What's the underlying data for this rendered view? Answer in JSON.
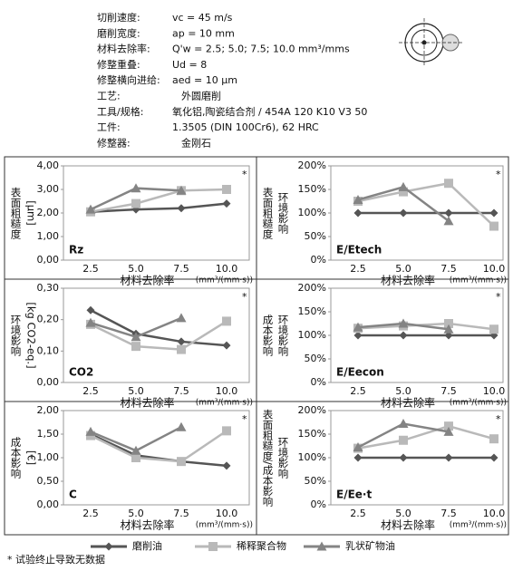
{
  "header": {
    "rows": [
      {
        "label": "切削速度:",
        "value": "vc = 45 m/s"
      },
      {
        "label": "磨削宽度:",
        "value": "ap = 10 mm"
      },
      {
        "label": "材料去除率:",
        "value": "Q'w = 2.5; 5.0; 7.5; 10.0 mm³/mms"
      },
      {
        "label": "修整重叠:",
        "value": "Ud = 8"
      },
      {
        "label": "修整横向进给:",
        "value": "aed = 10 μm"
      },
      {
        "label": "工艺:",
        "value": "外圆磨削"
      },
      {
        "label": "工具/规格:",
        "value": "氧化铝,陶瓷结合剂 / 454A 120 K10 V3 50"
      },
      {
        "label": "工件:",
        "value": "1.3505 (DIN 100Cr6), 62 HRC"
      },
      {
        "label": "修整器:",
        "value": "金刚石"
      }
    ]
  },
  "legend": [
    {
      "name": "磨削油",
      "color": "#555555",
      "marker": "diamond"
    },
    {
      "name": "稀释聚合物",
      "color": "#b9b9b9",
      "marker": "square"
    },
    {
      "name": "乳状矿物油",
      "color": "#848484",
      "marker": "triangle"
    }
  ],
  "footnote": "* 试验终止导致无数据",
  "chart_data": [
    {
      "type": "line",
      "ylabel": [
        "表面粗糙度",
        "[µm]"
      ],
      "corner": "Rz",
      "annotation": "*",
      "xlabel": "材料去除率",
      "xunit": "(mm³/(mm·s))",
      "categories": [
        "2.5",
        "5.0",
        "7.5",
        "10.0"
      ],
      "ylim": [
        0,
        4
      ],
      "yticks": [
        {
          "value": 0,
          "label": "0,00"
        },
        {
          "value": 1,
          "label": "1,00"
        },
        {
          "value": 2,
          "label": "2,00"
        },
        {
          "value": 3,
          "label": "3,00"
        },
        {
          "value": 4,
          "label": "4,00"
        }
      ],
      "series": [
        {
          "values": [
            2.05,
            2.15,
            2.2,
            2.4
          ]
        },
        {
          "values": [
            2.05,
            2.4,
            2.95,
            3.0
          ]
        },
        {
          "values": [
            2.15,
            3.05,
            2.95,
            null
          ]
        }
      ]
    },
    {
      "type": "line",
      "ylabel": [
        "表面粗糙度",
        "环境影响"
      ],
      "corner": "E/Etech",
      "annotation": "*",
      "xlabel": "材料去除率",
      "xunit": "(mm³/(mm·s))",
      "categories": [
        "2.5",
        "5.0",
        "7.5",
        "10.0"
      ],
      "ylim": [
        0,
        200
      ],
      "yticks": [
        {
          "value": 0,
          "label": "0%"
        },
        {
          "value": 50,
          "label": "50%"
        },
        {
          "value": 100,
          "label": "100%"
        },
        {
          "value": 150,
          "label": "150%"
        },
        {
          "value": 200,
          "label": "200%"
        }
      ],
      "series": [
        {
          "values": [
            100,
            100,
            100,
            100
          ]
        },
        {
          "values": [
            125,
            145,
            163,
            72
          ]
        },
        {
          "values": [
            128,
            155,
            83,
            null
          ]
        }
      ]
    },
    {
      "type": "line",
      "ylabel": [
        "环境影响",
        "[kg CO2-eq.]"
      ],
      "corner": "CO2",
      "annotation": "*",
      "xlabel": "材料去除率",
      "xunit": "(mm³/(mm·s))",
      "categories": [
        "2.5",
        "5.0",
        "7.5",
        "10.0"
      ],
      "ylim": [
        0,
        0.3
      ],
      "yticks": [
        {
          "value": 0,
          "label": "0,00"
        },
        {
          "value": 0.1,
          "label": "0,10"
        },
        {
          "value": 0.2,
          "label": "0,20"
        },
        {
          "value": 0.3,
          "label": "0,30"
        }
      ],
      "series": [
        {
          "values": [
            0.23,
            0.155,
            0.13,
            0.118
          ]
        },
        {
          "values": [
            0.185,
            0.115,
            0.105,
            0.195
          ]
        },
        {
          "values": [
            0.19,
            0.145,
            0.205,
            null
          ]
        }
      ]
    },
    {
      "type": "line",
      "ylabel": [
        "成本影响",
        "环境影响"
      ],
      "corner": "E/Eecon",
      "annotation": "*",
      "xlabel": "材料去除率",
      "xunit": "(mm³/(mm·s))",
      "categories": [
        "2.5",
        "5.0",
        "7.5",
        "10.0"
      ],
      "ylim": [
        0,
        200
      ],
      "yticks": [
        {
          "value": 0,
          "label": "0%"
        },
        {
          "value": 50,
          "label": "50%"
        },
        {
          "value": 100,
          "label": "100%"
        },
        {
          "value": 150,
          "label": "150%"
        },
        {
          "value": 200,
          "label": "200%"
        }
      ],
      "series": [
        {
          "values": [
            100,
            100,
            100,
            100
          ]
        },
        {
          "values": [
            115,
            120,
            125,
            113
          ]
        },
        {
          "values": [
            117,
            125,
            113,
            null
          ]
        }
      ]
    },
    {
      "type": "line",
      "ylabel": [
        "成本影响",
        "[€]"
      ],
      "corner": "C",
      "annotation": "*",
      "xlabel": "材料去除率",
      "xunit": "(mm³/(mm·s))",
      "categories": [
        "2.5",
        "5.0",
        "7.5",
        "10.0"
      ],
      "ylim": [
        0,
        2
      ],
      "yticks": [
        {
          "value": 0,
          "label": "0,00"
        },
        {
          "value": 0.5,
          "label": "0,50"
        },
        {
          "value": 1,
          "label": "1,00"
        },
        {
          "value": 1.5,
          "label": "1,50"
        },
        {
          "value": 2,
          "label": "2,00"
        }
      ],
      "series": [
        {
          "values": [
            1.5,
            1.05,
            0.92,
            0.83
          ]
        },
        {
          "values": [
            1.47,
            1.0,
            0.92,
            1.57
          ]
        },
        {
          "values": [
            1.55,
            1.15,
            1.65,
            null
          ]
        }
      ]
    },
    {
      "type": "line",
      "ylabel": [
        "表面粗糙度/成本影响",
        "环境影响"
      ],
      "corner": "E/Ee·t",
      "annotation": "*",
      "xlabel": "材料去除率",
      "xunit": "(mm³/(mm·s))",
      "categories": [
        "2.5",
        "5.0",
        "7.5",
        "10.0"
      ],
      "ylim": [
        0,
        200
      ],
      "yticks": [
        {
          "value": 0,
          "label": "0%"
        },
        {
          "value": 50,
          "label": "50%"
        },
        {
          "value": 100,
          "label": "100%"
        },
        {
          "value": 150,
          "label": "150%"
        },
        {
          "value": 200,
          "label": "200%"
        }
      ],
      "series": [
        {
          "values": [
            100,
            100,
            100,
            100
          ]
        },
        {
          "values": [
            120,
            137,
            167,
            140
          ]
        },
        {
          "values": [
            122,
            172,
            155,
            null
          ]
        }
      ]
    }
  ]
}
